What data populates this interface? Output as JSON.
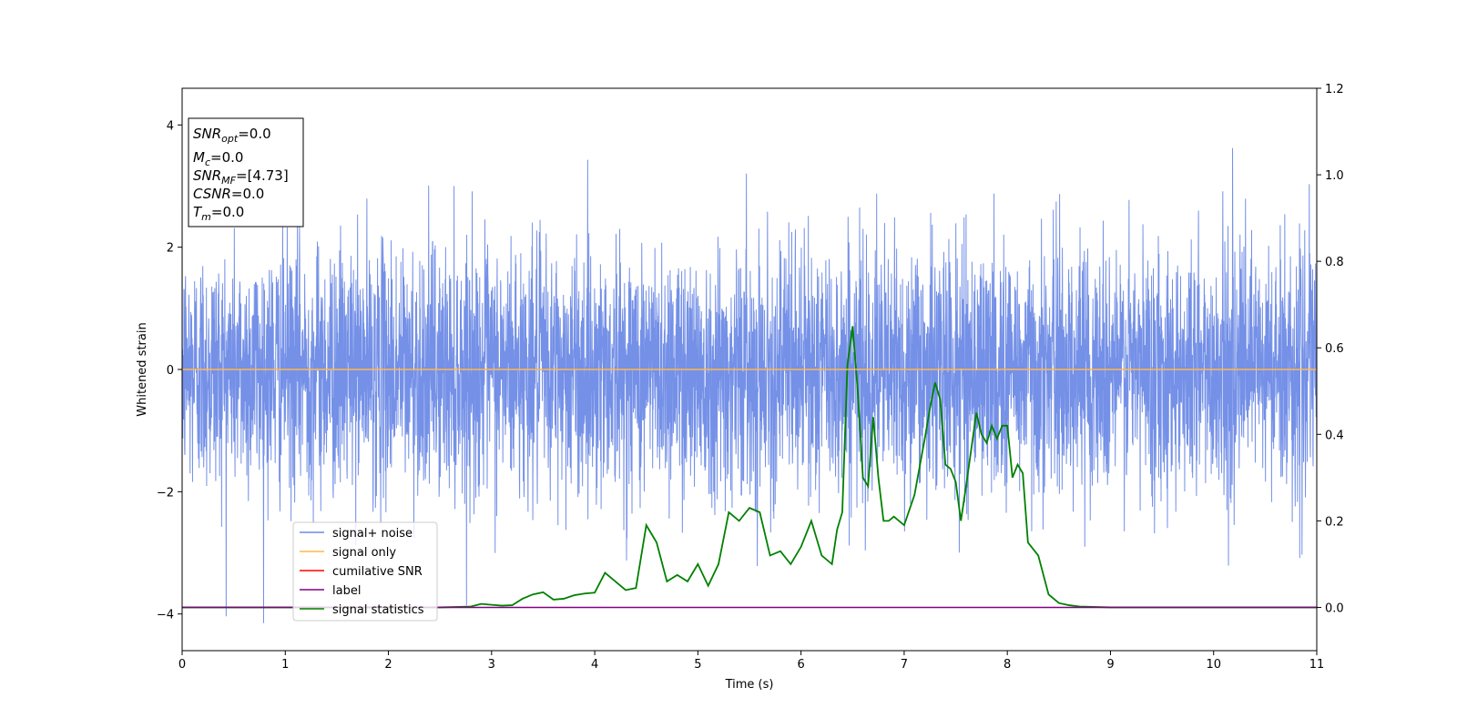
{
  "chart_data": {
    "type": "line",
    "xlabel": "Time (s)",
    "ylabel": "Whitened strain",
    "xlim": [
      0,
      11
    ],
    "ylim": [
      -4.6,
      4.6
    ],
    "ylim_right": [
      -0.1,
      1.2
    ],
    "xticks": [
      0,
      1,
      2,
      3,
      4,
      5,
      6,
      7,
      8,
      9,
      10,
      11
    ],
    "yticks": [
      -4,
      -2,
      0,
      2,
      4
    ],
    "yticks_right": [
      0.0,
      0.2,
      0.4,
      0.6,
      0.8,
      1.0,
      1.2
    ],
    "grid": false,
    "legend_position": "lower-left",
    "colors": {
      "noise": "#6d8ae6",
      "signal_only": "#ffb74d",
      "cumulative_snr": "#ff0000",
      "label": "#800080",
      "signal_statistics": "#008000"
    },
    "info_box": {
      "snr_opt": {
        "sym": "SNR",
        "sub": "opt",
        "val": "=0.0"
      },
      "mc": {
        "sym": "M",
        "sub": "c",
        "val": "=0.0"
      },
      "snr_mf": {
        "sym": "SNR",
        "sub": "MF",
        "val": "=[4.73]"
      },
      "csnr": {
        "sym": "CSNR",
        "val": "=0.0"
      },
      "tm": {
        "sym": "T",
        "sub": "m",
        "val": "=0.0"
      }
    },
    "legend": {
      "noise": "signal+ noise",
      "signal_only": "signal only",
      "cumulative_snr": "cumilative SNR",
      "label": "label",
      "signal_statistics": "signal statistics"
    },
    "series": [
      {
        "name": "signal statistics",
        "axis": "right",
        "points": [
          [
            0.0,
            0.0
          ],
          [
            0.5,
            0.0
          ],
          [
            1.0,
            0.0
          ],
          [
            1.5,
            0.0
          ],
          [
            2.0,
            0.0
          ],
          [
            2.5,
            0.0
          ],
          [
            2.8,
            0.002
          ],
          [
            2.9,
            0.008
          ],
          [
            3.0,
            0.006
          ],
          [
            3.1,
            0.004
          ],
          [
            3.2,
            0.005
          ],
          [
            3.3,
            0.02
          ],
          [
            3.4,
            0.03
          ],
          [
            3.5,
            0.035
          ],
          [
            3.6,
            0.018
          ],
          [
            3.7,
            0.02
          ],
          [
            3.8,
            0.028
          ],
          [
            3.9,
            0.032
          ],
          [
            4.0,
            0.034
          ],
          [
            4.1,
            0.08
          ],
          [
            4.2,
            0.06
          ],
          [
            4.3,
            0.04
          ],
          [
            4.4,
            0.045
          ],
          [
            4.5,
            0.19
          ],
          [
            4.6,
            0.15
          ],
          [
            4.7,
            0.06
          ],
          [
            4.8,
            0.075
          ],
          [
            4.9,
            0.06
          ],
          [
            5.0,
            0.1
          ],
          [
            5.1,
            0.05
          ],
          [
            5.2,
            0.1
          ],
          [
            5.3,
            0.22
          ],
          [
            5.4,
            0.2
          ],
          [
            5.5,
            0.23
          ],
          [
            5.6,
            0.22
          ],
          [
            5.7,
            0.12
          ],
          [
            5.8,
            0.13
          ],
          [
            5.9,
            0.1
          ],
          [
            6.0,
            0.14
          ],
          [
            6.1,
            0.2
          ],
          [
            6.2,
            0.12
          ],
          [
            6.3,
            0.1
          ],
          [
            6.35,
            0.18
          ],
          [
            6.4,
            0.22
          ],
          [
            6.45,
            0.56
          ],
          [
            6.5,
            0.65
          ],
          [
            6.55,
            0.5
          ],
          [
            6.6,
            0.3
          ],
          [
            6.65,
            0.28
          ],
          [
            6.7,
            0.44
          ],
          [
            6.75,
            0.3
          ],
          [
            6.8,
            0.2
          ],
          [
            6.85,
            0.2
          ],
          [
            6.9,
            0.21
          ],
          [
            6.95,
            0.2
          ],
          [
            7.0,
            0.19
          ],
          [
            7.1,
            0.26
          ],
          [
            7.2,
            0.39
          ],
          [
            7.25,
            0.46
          ],
          [
            7.3,
            0.52
          ],
          [
            7.35,
            0.48
          ],
          [
            7.4,
            0.33
          ],
          [
            7.45,
            0.32
          ],
          [
            7.5,
            0.29
          ],
          [
            7.55,
            0.2
          ],
          [
            7.6,
            0.28
          ],
          [
            7.7,
            0.45
          ],
          [
            7.75,
            0.4
          ],
          [
            7.8,
            0.38
          ],
          [
            7.85,
            0.42
          ],
          [
            7.9,
            0.39
          ],
          [
            7.95,
            0.42
          ],
          [
            8.0,
            0.42
          ],
          [
            8.05,
            0.3
          ],
          [
            8.1,
            0.33
          ],
          [
            8.15,
            0.31
          ],
          [
            8.2,
            0.15
          ],
          [
            8.3,
            0.12
          ],
          [
            8.4,
            0.03
          ],
          [
            8.5,
            0.01
          ],
          [
            8.6,
            0.005
          ],
          [
            8.7,
            0.002
          ],
          [
            9.0,
            0.0
          ],
          [
            10.0,
            0.0
          ],
          [
            11.0,
            0.0
          ]
        ]
      },
      {
        "name": "label",
        "axis": "right",
        "points": [
          [
            0.0,
            0.0
          ],
          [
            11.0,
            0.0
          ]
        ]
      },
      {
        "name": "signal only",
        "axis": "left",
        "points": [
          [
            0.0,
            0.0
          ],
          [
            11.0,
            0.0
          ]
        ]
      }
    ]
  }
}
